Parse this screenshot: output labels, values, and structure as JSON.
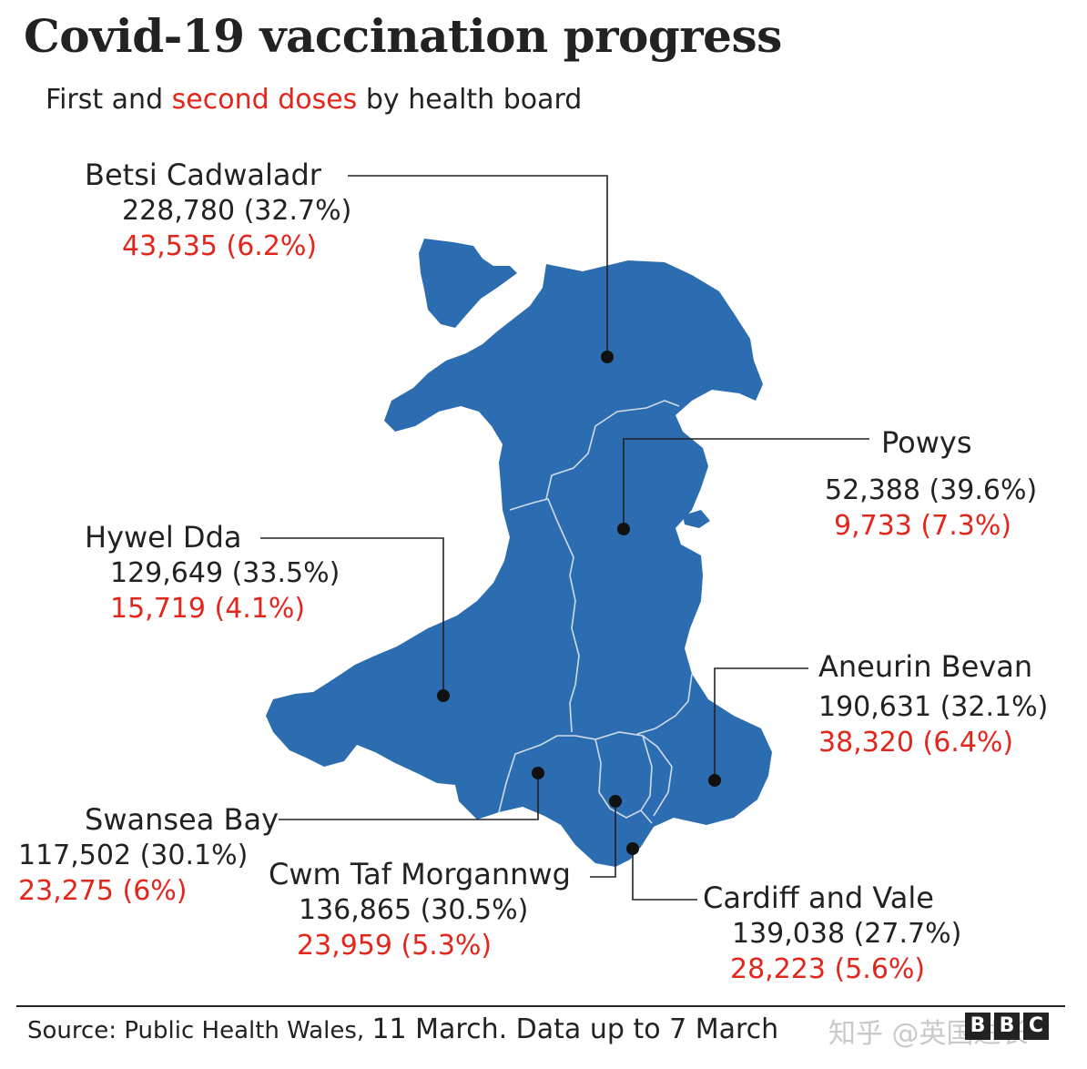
{
  "header": {
    "title": "Covid-19 vaccination progress",
    "subtitle_part1": "First and",
    "subtitle_accent": "second doses",
    "subtitle_part2": "by health board"
  },
  "colors": {
    "map_fill": "#2c6db1",
    "second_dose": "#e2261c",
    "text": "#222222"
  },
  "boards": [
    {
      "name": "Betsi Cadwaladr",
      "first": "228,780 (32.7%)",
      "second": "43,535 (6.2%)"
    },
    {
      "name": "Powys",
      "first": "52,388 (39.6%)",
      "second": "9,733 (7.3%)"
    },
    {
      "name": "Hywel Dda",
      "first": "129,649 (33.5%)",
      "second": "15,719 (4.1%)"
    },
    {
      "name": "Aneurin Bevan",
      "first": "190,631 (32.1%)",
      "second": "38,320 (6.4%)"
    },
    {
      "name": "Swansea Bay",
      "first": "117,502 (30.1%)",
      "second": "23,275 (6%)"
    },
    {
      "name": "Cwm Taf Morgannwg",
      "first": "136,865 (30.5%)",
      "second": "23,959 (5.3%)"
    },
    {
      "name": "Cardiff and Vale",
      "first": "139,038 (27.7%)",
      "second": "28,223 (5.6%)"
    }
  ],
  "footer": {
    "source": "Source: Public Health Wales,",
    "date": "11 March. Data up to 7 March",
    "watermark": "知乎 @英国进长",
    "logo_letters": [
      "B",
      "B",
      "C"
    ]
  }
}
